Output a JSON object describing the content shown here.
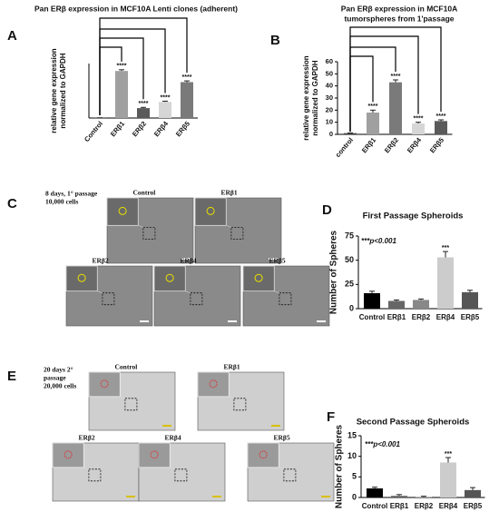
{
  "panels": [
    "A",
    "B",
    "C",
    "D",
    "E",
    "F"
  ],
  "chart_data": [
    {
      "type": "bar",
      "title": [
        "Pan ERβ expression in MCF10A Lenti clones (adherent)"
      ],
      "ylabel": [
        "relative gene expression",
        "normalized to GAPDH"
      ],
      "categories": [
        "Control",
        "ERβ1",
        "ERβ2",
        "ERβ4",
        "ERβ5"
      ],
      "values": [
        1,
        190,
        40,
        65,
        145
      ],
      "errors": [
        0,
        5,
        3,
        3,
        5
      ],
      "colors": [
        "#444444",
        "#a0a0a0",
        "#5a5a5a",
        "#d6d6d6",
        "#7a7a7a"
      ],
      "significance": [
        null,
        "****",
        "****",
        "****",
        "****"
      ],
      "ylim": [
        0,
        220
      ]
    },
    {
      "type": "bar",
      "title": [
        "Pan ERβ expression in MCF10A",
        "tumorspheres from 1'passage"
      ],
      "ylabel": [
        "relative gene expression",
        "normalized to GAPDH"
      ],
      "categories": [
        "control",
        "ERβ1",
        "ERβ2",
        "ERβ4",
        "ERβ5"
      ],
      "values": [
        1,
        18,
        43,
        9,
        11
      ],
      "errors": [
        0.2,
        2,
        2,
        1,
        1
      ],
      "colors": [
        "#444444",
        "#a0a0a0",
        "#7a7a7a",
        "#d6d6d6",
        "#5a5a5a"
      ],
      "significance": [
        null,
        "****",
        "****",
        "****",
        "****"
      ],
      "ylim": [
        0,
        60
      ],
      "yticks": [
        0,
        10,
        20,
        30,
        40,
        50,
        60
      ]
    },
    {
      "type": "bar",
      "title": [
        "First Passage Spheroids"
      ],
      "ylabel": "Number of Spheres",
      "annotation": "***p<0.001",
      "categories": [
        "Control",
        "ERβ1",
        "ERβ2",
        "ERβ4",
        "ERβ5"
      ],
      "values": [
        16,
        8,
        9,
        53,
        17
      ],
      "errors": [
        2,
        1,
        1,
        6,
        2
      ],
      "colors": [
        "#000000",
        "#666666",
        "#888888",
        "#cccccc",
        "#555555"
      ],
      "significance": [
        null,
        null,
        null,
        "***",
        null
      ],
      "ylim": [
        0,
        75
      ],
      "yticks": [
        0,
        25,
        50,
        75
      ]
    },
    {
      "type": "bar",
      "title": [
        "Second Passage Spheroids"
      ],
      "ylabel": "Number of Spheres",
      "annotation": "***p<0.001",
      "categories": [
        "Control",
        "ERβ1",
        "ERβ2",
        "ERβ4",
        "ERβ5"
      ],
      "values": [
        2.2,
        0.4,
        0.1,
        8.5,
        1.8
      ],
      "errors": [
        0.3,
        0.3,
        0.2,
        1.2,
        0.6
      ],
      "colors": [
        "#000000",
        "#666666",
        "#888888",
        "#cccccc",
        "#555555"
      ],
      "significance": [
        null,
        null,
        null,
        "***",
        null
      ],
      "ylim": [
        0,
        15
      ],
      "yticks": [
        0,
        5,
        10,
        15
      ]
    }
  ],
  "images": {
    "C": {
      "caption": [
        "8 days, 1° passage",
        "10,000 cells"
      ],
      "labels": [
        "Control",
        "ERβ1",
        "ERβ2",
        "ERβ4",
        "ERβ5"
      ]
    },
    "E": {
      "caption": [
        "20 days 2°",
        "passage",
        "20,000 cells"
      ],
      "labels": [
        "Control",
        "ERβ1",
        "ERβ2",
        "ERβ4",
        "ERβ5"
      ]
    }
  }
}
